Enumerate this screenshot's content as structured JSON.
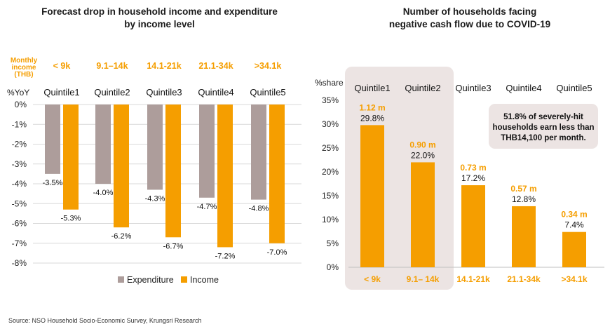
{
  "source": "Source: NSO Household Socio-Economic Survey, Krungsri Research",
  "chart_data": [
    {
      "type": "bar",
      "title": "Forecast drop in household income and expenditure by income level",
      "title_lines": [
        "Forecast drop in household income and expenditure",
        "by income level"
      ],
      "ylabel": "%YoY",
      "ylim": [
        -8,
        0
      ],
      "yticks": [
        "0%",
        "-1%",
        "-2%",
        "-3%",
        "-4%",
        "-5%",
        "-6%",
        "-7%",
        "-8%"
      ],
      "monthly_label_lines": [
        "Monthly",
        "income",
        "(THB)"
      ],
      "income_levels": [
        "< 9k",
        "9.1–14k",
        "14.1-21k",
        "21.1-34k",
        ">34.1k"
      ],
      "categories": [
        "Quintile1",
        "Quintile2",
        "Quintile3",
        "Quintile4",
        "Quintile5"
      ],
      "series": [
        {
          "name": "Expenditure",
          "color": "#ad9d9b",
          "values": [
            -3.5,
            -4.0,
            -4.3,
            -4.7,
            -4.8
          ],
          "labels": [
            "-3.5%",
            "-4.0%",
            "-4.3%",
            "-4.7%",
            "-4.8%"
          ]
        },
        {
          "name": "Income",
          "color": "#f59e00",
          "values": [
            -5.3,
            -6.2,
            -6.7,
            -7.2,
            -7.0
          ],
          "labels": [
            "-5.3%",
            "-6.2%",
            "-6.7%",
            "-7.2%",
            "-7.0%"
          ]
        }
      ],
      "grid": true,
      "legend": "bottom"
    },
    {
      "type": "bar",
      "title": "Number of households facing negative cash flow due to COVID-19",
      "title_lines": [
        "Number of households facing",
        "negative cash flow due to COVID-19"
      ],
      "ylabel": "%share",
      "ylim": [
        0,
        35
      ],
      "yticks": [
        "35%",
        "30%",
        "25%",
        "20%",
        "15%",
        "10%",
        "5%",
        "0%"
      ],
      "categories": [
        "Quintile1",
        "Quintile2",
        "Quintile3",
        "Quintile4",
        "Quintile5"
      ],
      "income_levels": [
        "< 9k",
        "9.1– 14k",
        "14.1-21k",
        "21.1-34k",
        ">34.1k"
      ],
      "values": [
        29.8,
        22.0,
        17.2,
        12.8,
        7.4
      ],
      "value_labels": [
        "29.8%",
        "22.0%",
        "17.2%",
        "12.8%",
        "7.4%"
      ],
      "households": [
        "1.12 m",
        "0.90 m",
        "0.73 m",
        "0.57 m",
        "0.34 m"
      ],
      "color": "#f59e00",
      "highlight_color": "#ece4e3",
      "highlight_categories": [
        "Quintile1",
        "Quintile2"
      ],
      "callout": [
        "51.8% of severely-hit",
        "households earn less than",
        "THB14,100 per month."
      ]
    }
  ]
}
